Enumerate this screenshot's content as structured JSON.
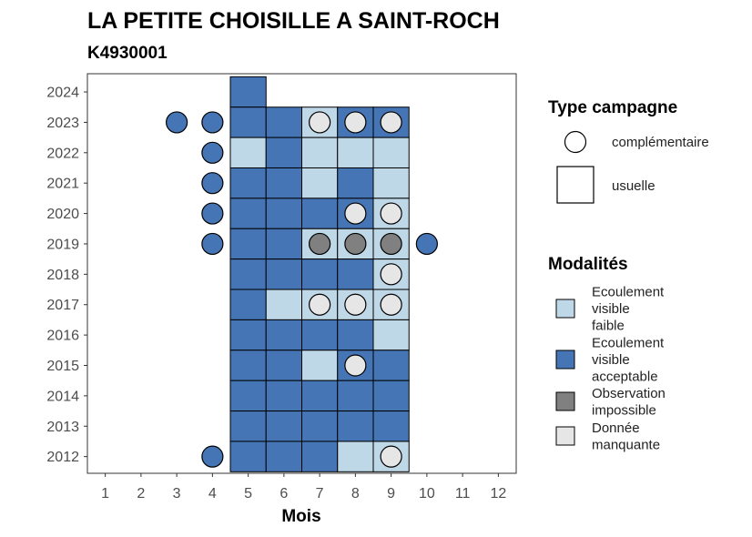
{
  "chart_data": {
    "type": "heatmap",
    "title": "LA PETITE CHOISILLE A SAINT-ROCH",
    "subtitle": "K4930001",
    "xlabel": "Mois",
    "ylabel": "",
    "x_ticks": [
      "1",
      "2",
      "3",
      "4",
      "5",
      "6",
      "7",
      "8",
      "9",
      "10",
      "11",
      "12"
    ],
    "y_ticks": [
      "2012",
      "2013",
      "2014",
      "2015",
      "2016",
      "2017",
      "2018",
      "2019",
      "2020",
      "2021",
      "2022",
      "2023",
      "2024"
    ],
    "xlim": [
      0.5,
      12.5
    ],
    "ylim": [
      2011.45,
      2024.6
    ],
    "grid": false,
    "colors": {
      "Ecoulement visible faible": "#bfd8e8",
      "Ecoulement visible acceptable": "#4575b4",
      "Observation impossible": "#808080",
      "Donnée manquante": "#e6e6e6"
    },
    "usuelle": [
      {
        "year": 2024,
        "month": 5,
        "mod": "Ecoulement visible acceptable"
      },
      {
        "year": 2023,
        "month": 5,
        "mod": "Ecoulement visible acceptable"
      },
      {
        "year": 2023,
        "month": 6,
        "mod": "Ecoulement visible acceptable"
      },
      {
        "year": 2023,
        "month": 7,
        "mod": "Ecoulement visible faible"
      },
      {
        "year": 2023,
        "month": 8,
        "mod": "Ecoulement visible acceptable"
      },
      {
        "year": 2023,
        "month": 9,
        "mod": "Ecoulement visible acceptable"
      },
      {
        "year": 2022,
        "month": 5,
        "mod": "Ecoulement visible faible"
      },
      {
        "year": 2022,
        "month": 6,
        "mod": "Ecoulement visible acceptable"
      },
      {
        "year": 2022,
        "month": 7,
        "mod": "Ecoulement visible faible"
      },
      {
        "year": 2022,
        "month": 8,
        "mod": "Ecoulement visible faible"
      },
      {
        "year": 2022,
        "month": 9,
        "mod": "Ecoulement visible faible"
      },
      {
        "year": 2021,
        "month": 5,
        "mod": "Ecoulement visible acceptable"
      },
      {
        "year": 2021,
        "month": 6,
        "mod": "Ecoulement visible acceptable"
      },
      {
        "year": 2021,
        "month": 7,
        "mod": "Ecoulement visible faible"
      },
      {
        "year": 2021,
        "month": 8,
        "mod": "Ecoulement visible acceptable"
      },
      {
        "year": 2021,
        "month": 9,
        "mod": "Ecoulement visible faible"
      },
      {
        "year": 2020,
        "month": 5,
        "mod": "Ecoulement visible acceptable"
      },
      {
        "year": 2020,
        "month": 6,
        "mod": "Ecoulement visible acceptable"
      },
      {
        "year": 2020,
        "month": 7,
        "mod": "Ecoulement visible acceptable"
      },
      {
        "year": 2020,
        "month": 8,
        "mod": "Ecoulement visible acceptable"
      },
      {
        "year": 2020,
        "month": 9,
        "mod": "Ecoulement visible faible"
      },
      {
        "year": 2019,
        "month": 5,
        "mod": "Ecoulement visible acceptable"
      },
      {
        "year": 2019,
        "month": 6,
        "mod": "Ecoulement visible acceptable"
      },
      {
        "year": 2019,
        "month": 7,
        "mod": "Ecoulement visible faible"
      },
      {
        "year": 2019,
        "month": 8,
        "mod": "Ecoulement visible faible"
      },
      {
        "year": 2019,
        "month": 9,
        "mod": "Ecoulement visible faible"
      },
      {
        "year": 2018,
        "month": 5,
        "mod": "Ecoulement visible acceptable"
      },
      {
        "year": 2018,
        "month": 6,
        "mod": "Ecoulement visible acceptable"
      },
      {
        "year": 2018,
        "month": 7,
        "mod": "Ecoulement visible acceptable"
      },
      {
        "year": 2018,
        "month": 8,
        "mod": "Ecoulement visible acceptable"
      },
      {
        "year": 2018,
        "month": 9,
        "mod": "Ecoulement visible faible"
      },
      {
        "year": 2017,
        "month": 5,
        "mod": "Ecoulement visible acceptable"
      },
      {
        "year": 2017,
        "month": 6,
        "mod": "Ecoulement visible faible"
      },
      {
        "year": 2017,
        "month": 7,
        "mod": "Ecoulement visible faible"
      },
      {
        "year": 2017,
        "month": 8,
        "mod": "Ecoulement visible faible"
      },
      {
        "year": 2017,
        "month": 9,
        "mod": "Ecoulement visible faible"
      },
      {
        "year": 2016,
        "month": 5,
        "mod": "Ecoulement visible acceptable"
      },
      {
        "year": 2016,
        "month": 6,
        "mod": "Ecoulement visible acceptable"
      },
      {
        "year": 2016,
        "month": 7,
        "mod": "Ecoulement visible acceptable"
      },
      {
        "year": 2016,
        "month": 8,
        "mod": "Ecoulement visible acceptable"
      },
      {
        "year": 2016,
        "month": 9,
        "mod": "Ecoulement visible faible"
      },
      {
        "year": 2015,
        "month": 5,
        "mod": "Ecoulement visible acceptable"
      },
      {
        "year": 2015,
        "month": 6,
        "mod": "Ecoulement visible acceptable"
      },
      {
        "year": 2015,
        "month": 7,
        "mod": "Ecoulement visible faible"
      },
      {
        "year": 2015,
        "month": 8,
        "mod": "Ecoulement visible acceptable"
      },
      {
        "year": 2015,
        "month": 9,
        "mod": "Ecoulement visible acceptable"
      },
      {
        "year": 2014,
        "month": 5,
        "mod": "Ecoulement visible acceptable"
      },
      {
        "year": 2014,
        "month": 6,
        "mod": "Ecoulement visible acceptable"
      },
      {
        "year": 2014,
        "month": 7,
        "mod": "Ecoulement visible acceptable"
      },
      {
        "year": 2014,
        "month": 8,
        "mod": "Ecoulement visible acceptable"
      },
      {
        "year": 2014,
        "month": 9,
        "mod": "Ecoulement visible acceptable"
      },
      {
        "year": 2013,
        "month": 5,
        "mod": "Ecoulement visible acceptable"
      },
      {
        "year": 2013,
        "month": 6,
        "mod": "Ecoulement visible acceptable"
      },
      {
        "year": 2013,
        "month": 7,
        "mod": "Ecoulement visible acceptable"
      },
      {
        "year": 2013,
        "month": 8,
        "mod": "Ecoulement visible acceptable"
      },
      {
        "year": 2013,
        "month": 9,
        "mod": "Ecoulement visible acceptable"
      },
      {
        "year": 2012,
        "month": 5,
        "mod": "Ecoulement visible acceptable"
      },
      {
        "year": 2012,
        "month": 6,
        "mod": "Ecoulement visible acceptable"
      },
      {
        "year": 2012,
        "month": 7,
        "mod": "Ecoulement visible acceptable"
      },
      {
        "year": 2012,
        "month": 8,
        "mod": "Ecoulement visible faible"
      },
      {
        "year": 2012,
        "month": 9,
        "mod": "Ecoulement visible faible"
      }
    ],
    "complementaire": [
      {
        "year": 2023,
        "month": 3,
        "mod": "Ecoulement visible acceptable"
      },
      {
        "year": 2023,
        "month": 4,
        "mod": "Ecoulement visible acceptable"
      },
      {
        "year": 2023,
        "month": 7,
        "mod": "Donnée manquante"
      },
      {
        "year": 2023,
        "month": 8,
        "mod": "Donnée manquante"
      },
      {
        "year": 2023,
        "month": 9,
        "mod": "Donnée manquante"
      },
      {
        "year": 2022,
        "month": 4,
        "mod": "Ecoulement visible acceptable"
      },
      {
        "year": 2021,
        "month": 4,
        "mod": "Ecoulement visible acceptable"
      },
      {
        "year": 2020,
        "month": 4,
        "mod": "Ecoulement visible acceptable"
      },
      {
        "year": 2020,
        "month": 8,
        "mod": "Donnée manquante"
      },
      {
        "year": 2020,
        "month": 9,
        "mod": "Donnée manquante"
      },
      {
        "year": 2019,
        "month": 4,
        "mod": "Ecoulement visible acceptable"
      },
      {
        "year": 2019,
        "month": 7,
        "mod": "Observation impossible"
      },
      {
        "year": 2019,
        "month": 8,
        "mod": "Observation impossible"
      },
      {
        "year": 2019,
        "month": 9,
        "mod": "Observation impossible"
      },
      {
        "year": 2019,
        "month": 10,
        "mod": "Ecoulement visible acceptable"
      },
      {
        "year": 2018,
        "month": 9,
        "mod": "Donnée manquante"
      },
      {
        "year": 2017,
        "month": 7,
        "mod": "Donnée manquante"
      },
      {
        "year": 2017,
        "month": 8,
        "mod": "Donnée manquante"
      },
      {
        "year": 2017,
        "month": 9,
        "mod": "Donnée manquante"
      },
      {
        "year": 2015,
        "month": 8,
        "mod": "Donnée manquante"
      },
      {
        "year": 2012,
        "month": 4,
        "mod": "Ecoulement visible acceptable"
      },
      {
        "year": 2012,
        "month": 9,
        "mod": "Donnée manquante"
      }
    ],
    "legend": {
      "placement": "right",
      "type_title": "Type campagne",
      "type_items": [
        "complémentaire",
        "usuelle"
      ],
      "mod_title": "Modalités",
      "mod_items": [
        {
          "key": "Ecoulement visible faible",
          "lines": [
            "Ecoulement",
            "visible",
            "faible"
          ]
        },
        {
          "key": "Ecoulement visible acceptable",
          "lines": [
            "Ecoulement",
            "visible",
            "acceptable"
          ]
        },
        {
          "key": "Observation impossible",
          "lines": [
            "Observation",
            "impossible"
          ]
        },
        {
          "key": "Donnée manquante",
          "lines": [
            "Donnée",
            "manquante"
          ]
        }
      ]
    }
  }
}
